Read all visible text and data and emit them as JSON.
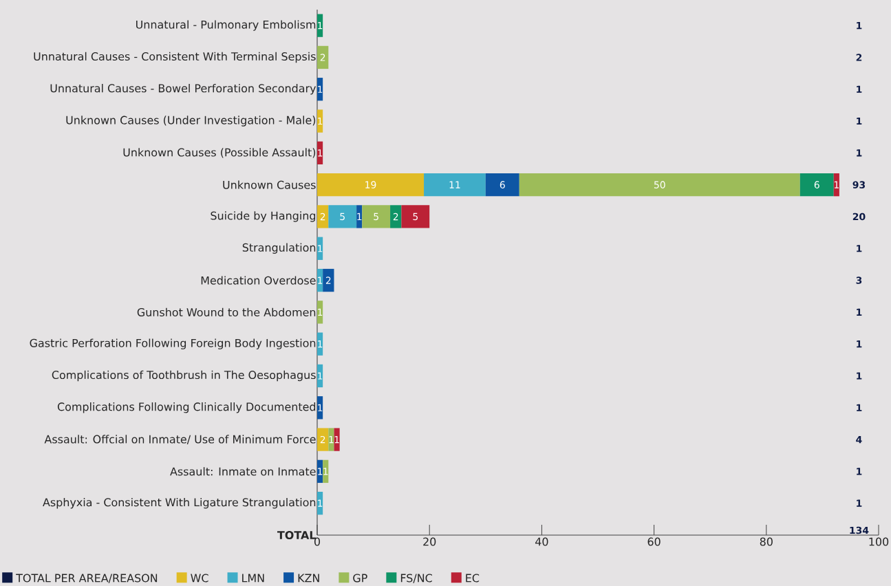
{
  "chart_data": {
    "type": "bar",
    "orientation": "horizontal",
    "stacked": true,
    "categories": [
      "Unnatural - Pulmonary Embolism",
      "Unnatural Causes - Consistent With Terminal Sepsis",
      "Unnatural Causes - Bowel Perforation Secondary",
      "Unknown Causes (Under Investigation - Male)",
      "Unknown Causes (Possible Assault)",
      "Unknown Causes",
      "Suicide by Hanging",
      "Strangulation",
      "Medication Overdose",
      "Gunshot Wound to the Abdomen",
      "Gastric Perforation Following Foreign Body Ingestion",
      "Complications of Toothbrush in The Oesophagus",
      "Complications Following Clinically Documented",
      "Assault: Offcial on Inmate/ Use of Minimum Force",
      "Assault: Inmate on Inmate",
      "Asphyxia - Consistent With Ligature Strangulation",
      "TOTAL"
    ],
    "series": [
      {
        "name": "TOTAL PER AREA/REASON",
        "color": "#0d1a45",
        "values": [
          null,
          null,
          null,
          null,
          null,
          null,
          null,
          null,
          null,
          null,
          null,
          null,
          null,
          null,
          null,
          null,
          null
        ]
      },
      {
        "name": "WC",
        "color": "#e0bc25",
        "values": [
          null,
          null,
          null,
          1,
          null,
          19,
          2,
          null,
          null,
          null,
          null,
          null,
          null,
          2,
          null,
          null,
          null
        ]
      },
      {
        "name": "LMN",
        "color": "#3fadc8",
        "values": [
          null,
          null,
          null,
          null,
          null,
          11,
          5,
          1,
          1,
          null,
          1,
          1,
          null,
          null,
          null,
          1,
          null
        ]
      },
      {
        "name": "KZN",
        "color": "#0e56a4",
        "values": [
          null,
          null,
          1,
          null,
          null,
          6,
          1,
          null,
          2,
          null,
          null,
          null,
          1,
          null,
          1,
          null,
          null
        ]
      },
      {
        "name": "GP",
        "color": "#9dbc59",
        "values": [
          null,
          2,
          null,
          null,
          null,
          50,
          5,
          null,
          null,
          1,
          null,
          null,
          null,
          1,
          1,
          null,
          null
        ]
      },
      {
        "name": "FS/NC",
        "color": "#0f9466",
        "values": [
          1,
          null,
          null,
          null,
          null,
          6,
          2,
          null,
          null,
          null,
          null,
          null,
          null,
          null,
          null,
          null,
          null
        ]
      },
      {
        "name": "EC",
        "color": "#bb2236",
        "values": [
          null,
          null,
          null,
          null,
          1,
          1,
          5,
          null,
          null,
          null,
          null,
          null,
          null,
          1,
          null,
          null,
          null
        ]
      }
    ],
    "annotations": [
      "1",
      "2",
      "1",
      "1",
      "1",
      "93",
      "20",
      "1",
      "3",
      "1",
      "1",
      "1",
      "1",
      "4",
      "1",
      "1",
      "134"
    ],
    "data_labels": true,
    "xlim": [
      0,
      100
    ],
    "xticks": [
      0,
      20,
      40,
      60,
      80,
      100
    ],
    "legend": "bottom left"
  }
}
